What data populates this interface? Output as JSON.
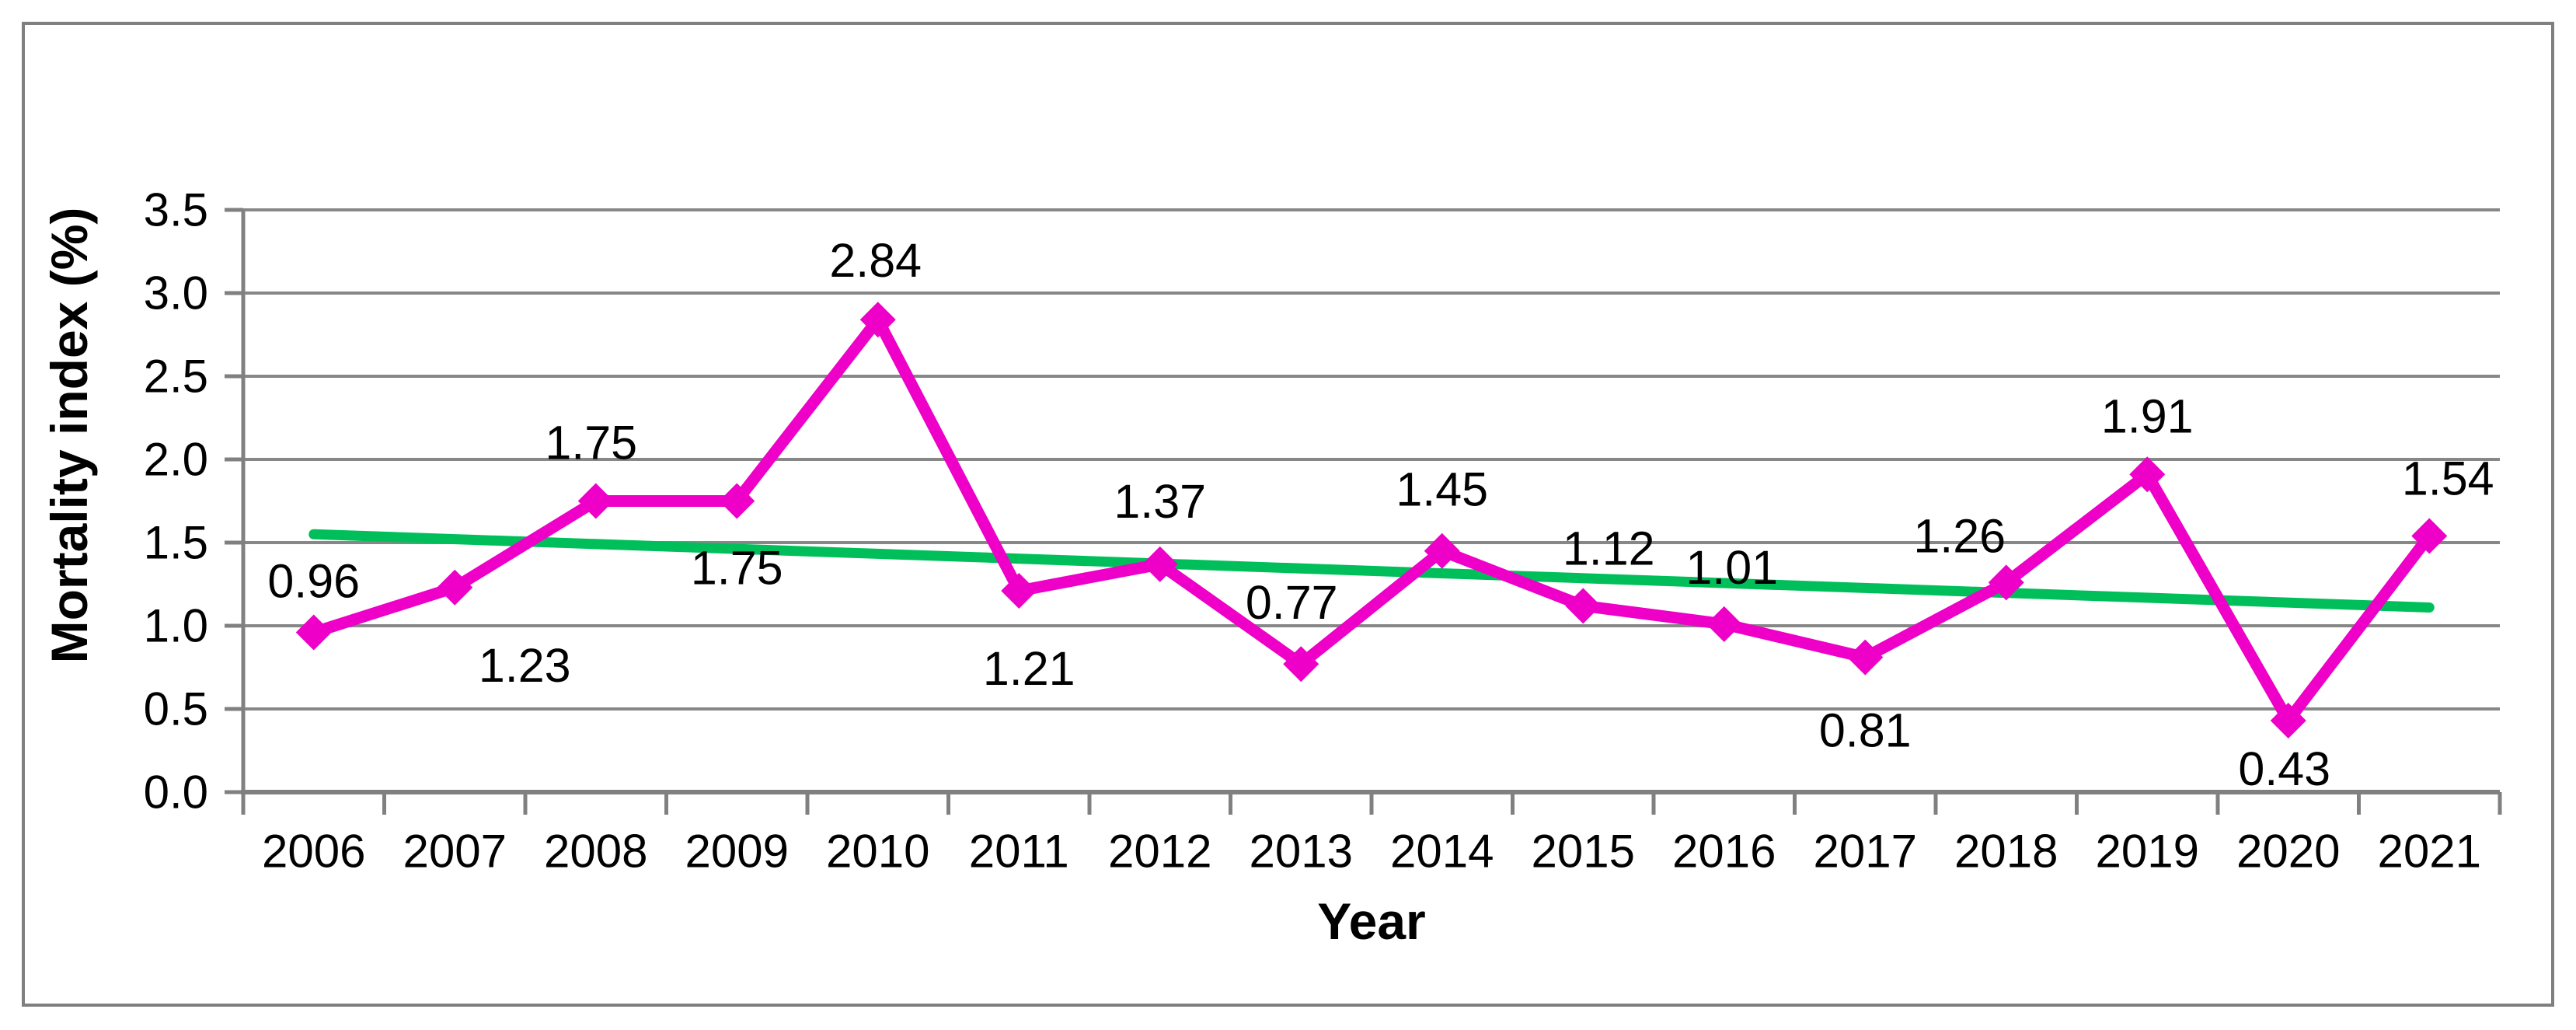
{
  "figure": {
    "background": "#FFFFFF",
    "border_color": "#7F7F7F"
  },
  "axis_style": {
    "grid_color": "#878787",
    "axis_color": "#808080",
    "text_color": "#000000"
  },
  "chart_data": {
    "type": "line",
    "title": "",
    "xlabel": "Year",
    "ylabel": "Mortality index (%)",
    "categories": [
      "2006",
      "2007",
      "2008",
      "2009",
      "2010",
      "2011",
      "2012",
      "2013",
      "2014",
      "2015",
      "2016",
      "2017",
      "2018",
      "2019",
      "2020",
      "2021"
    ],
    "ylim": [
      0.0,
      3.5
    ],
    "ytick_step": 0.5,
    "ytick_labels": [
      "0.0",
      "0.5",
      "1.0",
      "1.5",
      "2.0",
      "2.5",
      "3.0",
      "3.5"
    ],
    "grid": true,
    "legend_position": "none",
    "series": [
      {
        "name": "Mortality index (%)",
        "type": "line",
        "color": "#EE00C8",
        "marker": "diamond",
        "values": [
          0.96,
          1.23,
          1.75,
          1.75,
          2.84,
          1.21,
          1.37,
          0.77,
          1.45,
          1.12,
          1.01,
          0.81,
          1.26,
          1.91,
          0.43,
          1.54
        ],
        "data_labels": [
          "0.96",
          "1.23",
          "1.75",
          "1.75",
          "2.84",
          "1.21",
          "1.37",
          "0.77",
          "1.45",
          "1.12",
          "1.01",
          "0.81",
          "1.26",
          "1.91",
          "0.43",
          "1.54"
        ],
        "label_offsets": [
          [
            0,
            -66
          ],
          [
            90,
            100
          ],
          [
            -6,
            -75
          ],
          [
            0,
            86
          ],
          [
            -3,
            -76
          ],
          [
            13,
            100
          ],
          [
            0,
            -81
          ],
          [
            -12,
            -79
          ],
          [
            0,
            -79
          ],
          [
            33,
            -74
          ],
          [
            10,
            -73
          ],
          [
            0,
            94
          ],
          [
            -60,
            -60
          ],
          [
            0,
            -75
          ],
          [
            -5,
            62
          ],
          [
            24,
            -74
          ]
        ]
      },
      {
        "name": "Linear trend",
        "type": "trendline",
        "color": "#00BF5A",
        "start_value": 1.55,
        "end_value": 1.11
      }
    ]
  }
}
